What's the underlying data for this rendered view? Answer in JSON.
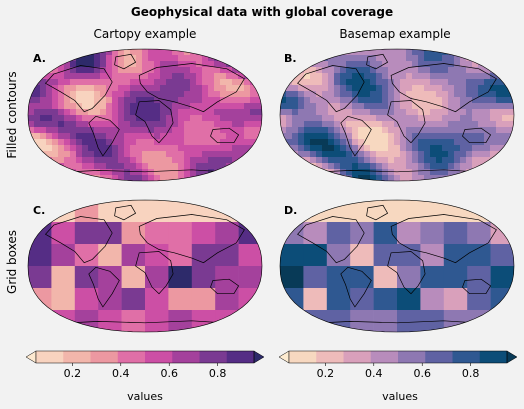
{
  "title": "Geophysical data with global coverage",
  "columns": [
    "Cartopy example",
    "Basemap example"
  ],
  "rows": [
    "Filled contours",
    "Grid boxes"
  ],
  "panels": [
    {
      "label": "A.",
      "projection": "Robinson",
      "style": "filled-contours",
      "cmap": "magma-pink"
    },
    {
      "label": "B.",
      "projection": "Robinson",
      "style": "filled-contours",
      "cmap": "blue-pink"
    },
    {
      "label": "C.",
      "projection": "Robinson",
      "style": "grid-boxes",
      "cmap": "magma-pink"
    },
    {
      "label": "D.",
      "projection": "Robinson",
      "style": "grid-boxes",
      "cmap": "blue-pink"
    }
  ],
  "colors": {
    "figure_bg": "#f2f2f2",
    "coastline": "#000000",
    "cmap_left": [
      "#fde9d0",
      "#f8d3bf",
      "#f2b6ab",
      "#ec98a1",
      "#e06fa7",
      "#cc4fa5",
      "#a4419c",
      "#7a3a92",
      "#552d85",
      "#2d2a6a"
    ],
    "cmap_right": [
      "#fdebd0",
      "#f7d8c0",
      "#eebbba",
      "#d9a0bb",
      "#b88cbc",
      "#8e78b2",
      "#5f62a3",
      "#2f5891",
      "#0c4d78",
      "#083a57"
    ]
  },
  "chart_data": [
    {
      "type": "heatmap",
      "panel": "A",
      "title": "",
      "grid": "coarse lat/lon random field, smoothed",
      "levels": [
        0.1,
        0.2,
        0.3,
        0.4,
        0.5,
        0.6,
        0.7,
        0.8,
        0.9
      ],
      "extend": "both"
    },
    {
      "type": "heatmap",
      "panel": "B",
      "title": "",
      "grid": "coarse lat/lon random field, smoothed",
      "levels": [
        0.1,
        0.2,
        0.3,
        0.4,
        0.5,
        0.6,
        0.7,
        0.8,
        0.9
      ],
      "extend": "both"
    },
    {
      "type": "heatmap",
      "panel": "C",
      "title": "",
      "grid_cols": 10,
      "grid_rows": 6,
      "values": [
        [
          0.12,
          0.12,
          0.3,
          0.12,
          0.12,
          0.12,
          0.12,
          0.12,
          0.12,
          0.12
        ],
        [
          0.85,
          0.5,
          0.7,
          0.72,
          0.35,
          0.4,
          0.45,
          0.5,
          0.6,
          0.85
        ],
        [
          0.8,
          0.6,
          0.45,
          0.2,
          0.65,
          0.55,
          0.4,
          0.78,
          0.7,
          0.55
        ],
        [
          0.75,
          0.2,
          0.7,
          0.65,
          0.25,
          0.6,
          0.9,
          0.78,
          0.62,
          0.6
        ],
        [
          0.35,
          0.2,
          0.5,
          0.6,
          0.7,
          0.55,
          0.35,
          0.3,
          0.65,
          0.5
        ],
        [
          0.5,
          0.55,
          0.6,
          0.5,
          0.45,
          0.55,
          0.6,
          0.55,
          0.5,
          0.45
        ]
      ]
    },
    {
      "type": "heatmap",
      "panel": "D",
      "title": "",
      "grid_cols": 10,
      "grid_rows": 6,
      "values": [
        [
          0.12,
          0.12,
          0.12,
          0.12,
          0.12,
          0.12,
          0.12,
          0.12,
          0.12,
          0.12
        ],
        [
          0.55,
          0.4,
          0.6,
          0.55,
          0.7,
          0.45,
          0.55,
          0.6,
          0.5,
          0.35
        ],
        [
          0.8,
          0.85,
          0.5,
          0.2,
          0.6,
          0.6,
          0.4,
          0.78,
          0.7,
          0.6
        ],
        [
          0.9,
          0.6,
          0.75,
          0.7,
          0.25,
          0.55,
          0.75,
          0.78,
          0.62,
          0.88
        ],
        [
          0.7,
          0.2,
          0.75,
          0.6,
          0.7,
          0.85,
          0.4,
          0.3,
          0.65,
          0.7
        ],
        [
          0.6,
          0.6,
          0.65,
          0.55,
          0.55,
          0.6,
          0.6,
          0.55,
          0.55,
          0.6
        ]
      ]
    }
  ],
  "colorbars": [
    {
      "label": "values",
      "ticks": [
        "0.2",
        "0.4",
        "0.6",
        "0.8"
      ],
      "range": [
        0.05,
        0.95
      ],
      "tick_values": [
        0.2,
        0.4,
        0.6,
        0.8
      ]
    },
    {
      "label": "values",
      "ticks": [
        "0.2",
        "0.4",
        "0.6",
        "0.8"
      ],
      "range": [
        0.05,
        0.95
      ],
      "tick_values": [
        0.2,
        0.4,
        0.6,
        0.8
      ]
    }
  ]
}
